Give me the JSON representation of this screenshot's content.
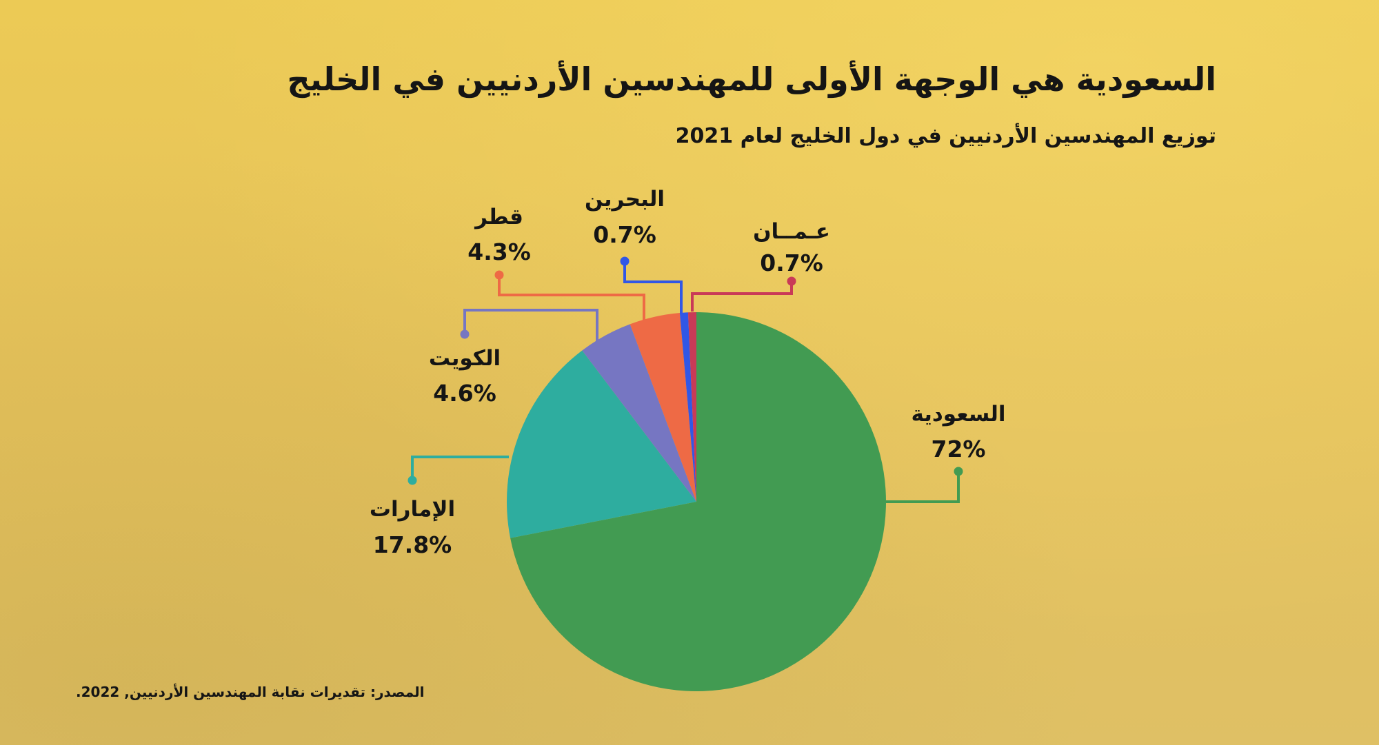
{
  "title": "السعودية هي الوجهة الأولى للمهندسين الأردنيين في الخليج",
  "subtitle": "توزيع المهندسين الأردنيين في دول الخليج لعام 2021",
  "source": "المصدر: تقديرات نقابة المهندسين الأردنيين, 2022.",
  "chart_data": {
    "type": "pie",
    "title": "توزيع المهندسين الأردنيين في دول الخليج لعام 2021",
    "slices": [
      {
        "label": "السعودية",
        "value": 72,
        "value_label": "72%",
        "color": "#429b52"
      },
      {
        "label": "الإمارات",
        "value": 17.8,
        "value_label": "17.8%",
        "color": "#2ead9f"
      },
      {
        "label": "الكويت",
        "value": 4.6,
        "value_label": "4.6%",
        "color": "#7676c2"
      },
      {
        "label": "قطر",
        "value": 4.3,
        "value_label": "4.3%",
        "color": "#ee6a45"
      },
      {
        "label": "البحرين",
        "value": 0.7,
        "value_label": "0.7%",
        "color": "#3157e6"
      },
      {
        "label": "عـمــان",
        "value": 0.7,
        "value_label": "0.7%",
        "color": "#c93a57"
      }
    ]
  }
}
